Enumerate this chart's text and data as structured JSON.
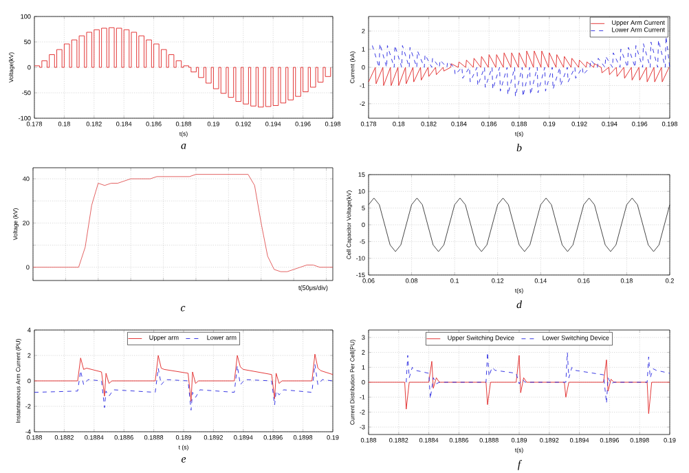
{
  "chart_data": [
    {
      "type": "step",
      "xlabel": "t(s)",
      "ylabel": "Voltage(kV)",
      "annotations": [
        "a"
      ],
      "grid": true,
      "color": "#e02020",
      "x": [
        0.178,
        0.17835,
        0.1785,
        0.17885,
        0.179,
        0.17935,
        0.1795,
        0.17985,
        0.18,
        0.18035,
        0.1805,
        0.18085,
        0.181,
        0.18135,
        0.1815,
        0.18185,
        0.182,
        0.18235,
        0.1825,
        0.18285,
        0.183,
        0.18335,
        0.1835,
        0.18385,
        0.184,
        0.18435,
        0.1845,
        0.18485,
        0.185,
        0.18535,
        0.1855,
        0.18585,
        0.186,
        0.18635,
        0.1865,
        0.18685,
        0.187,
        0.18735,
        0.1875,
        0.18785,
        0.188,
        0.18835,
        0.1885,
        0.18885,
        0.189,
        0.18935,
        0.1895,
        0.18985,
        0.19,
        0.19035,
        0.1905,
        0.19085,
        0.191,
        0.19135,
        0.1915,
        0.19185,
        0.192,
        0.19235,
        0.1925,
        0.19285,
        0.193,
        0.19335,
        0.1935,
        0.19385,
        0.194,
        0.19435,
        0.1945,
        0.19485,
        0.195,
        0.19535,
        0.1955,
        0.19585,
        0.196,
        0.19635,
        0.1965,
        0.19685,
        0.197,
        0.19735,
        0.1975,
        0.19785
      ],
      "values": [
        3,
        0,
        13,
        0,
        25,
        0,
        35,
        0,
        46,
        0,
        54,
        0,
        62,
        0,
        69,
        0,
        74,
        0,
        77,
        0,
        78,
        0,
        77,
        0,
        74,
        0,
        69,
        0,
        62,
        0,
        54,
        0,
        46,
        0,
        35,
        0,
        25,
        0,
        13,
        0,
        3,
        0,
        -9,
        0,
        -20,
        0,
        -31,
        0,
        -42,
        0,
        -51,
        0,
        -59,
        0,
        -67,
        0,
        -72,
        0,
        -76,
        0,
        -78,
        0,
        -77,
        0,
        -75,
        0,
        -70,
        0,
        -64,
        0,
        -57,
        0,
        -48,
        0,
        -39,
        0,
        -29,
        0,
        -18,
        0
      ],
      "xlim": [
        0.178,
        0.198
      ],
      "xticks": [
        0.178,
        0.18,
        0.182,
        0.184,
        0.186,
        0.188,
        0.19,
        0.192,
        0.194,
        0.196,
        0.198
      ],
      "ylim": [
        -100,
        100
      ],
      "yticks": [
        -100,
        -50,
        0,
        50,
        100
      ]
    },
    {
      "type": "line",
      "xlabel": "t(s)",
      "ylabel": "Current (kA)",
      "annotations": [
        "b"
      ],
      "grid": true,
      "legend": "top right",
      "series": [
        {
          "name": "Upper Arm Current",
          "color": "#e02020",
          "line_style": "solid",
          "x": [
            0.178,
            0.17845,
            0.1785,
            0.17895,
            0.179,
            0.17945,
            0.1795,
            0.17995,
            0.18,
            0.18045,
            0.1805,
            0.18095,
            0.181,
            0.18145,
            0.1815,
            0.18195,
            0.182,
            0.18245,
            0.1825,
            0.18295,
            0.183,
            0.18345,
            0.1835,
            0.18395,
            0.184,
            0.18445,
            0.1845,
            0.18495,
            0.185,
            0.18545,
            0.1855,
            0.18595,
            0.186,
            0.18645,
            0.1865,
            0.18695,
            0.187,
            0.18745,
            0.1875,
            0.18795,
            0.188,
            0.18845,
            0.1885,
            0.18895,
            0.189,
            0.18945,
            0.1895,
            0.18995,
            0.19,
            0.19045,
            0.1905,
            0.19095,
            0.191,
            0.19145,
            0.1915,
            0.19195,
            0.192,
            0.19245,
            0.1925,
            0.19295,
            0.193,
            0.19345,
            0.1935,
            0.19395,
            0.194,
            0.19445,
            0.1945,
            0.19495,
            0.195,
            0.19545,
            0.1955,
            0.19595,
            0.196,
            0.19645,
            0.1965,
            0.19695,
            0.197,
            0.19745,
            0.1975,
            0.19795
          ],
          "values": [
            -0.8,
            0,
            -0.9,
            0,
            -1,
            0,
            -1,
            0,
            -1,
            0,
            -0.9,
            0,
            -0.8,
            0,
            -0.7,
            0,
            -0.5,
            0,
            -0.4,
            0,
            -0.2,
            0,
            0.2,
            0,
            0.3,
            0,
            0.4,
            0,
            0.5,
            0,
            0.6,
            0,
            0.7,
            0,
            0.7,
            0,
            0.8,
            0,
            0.8,
            0,
            0.8,
            0,
            0.9,
            0,
            0.9,
            0,
            0.9,
            0,
            0.8,
            0,
            0.7,
            0,
            0.6,
            0,
            0.5,
            0,
            0.4,
            0,
            0.3,
            0,
            0.2,
            0,
            -0.3,
            0,
            -0.4,
            0,
            -0.5,
            0,
            -0.6,
            0,
            -0.7,
            0,
            -0.7,
            0,
            -0.8,
            0,
            -0.8,
            0,
            -0.8,
            0
          ]
        },
        {
          "name": "Lower Arm Current",
          "color": "#2020e0",
          "line_style": "dashed",
          "x": [
            0.17825,
            0.1787,
            0.17875,
            0.1792,
            0.17925,
            0.1797,
            0.17975,
            0.1802,
            0.18025,
            0.1807,
            0.18075,
            0.1812,
            0.18125,
            0.1817,
            0.18175,
            0.1822,
            0.18225,
            0.1827,
            0.18275,
            0.1832,
            0.18325,
            0.1837,
            0.18375,
            0.1842,
            0.18425,
            0.1847,
            0.18475,
            0.1852,
            0.18525,
            0.1857,
            0.18575,
            0.1862,
            0.18625,
            0.1867,
            0.18675,
            0.1872,
            0.18725,
            0.1877,
            0.18775,
            0.1882,
            0.18825,
            0.1887,
            0.18875,
            0.1892,
            0.18925,
            0.1897,
            0.18975,
            0.1902,
            0.19025,
            0.1907,
            0.19075,
            0.1912,
            0.19125,
            0.1917,
            0.19175,
            0.1922,
            0.19225,
            0.1927,
            0.19275,
            0.1932,
            0.19325,
            0.1937,
            0.19375,
            0.1942,
            0.19425,
            0.1947,
            0.19475,
            0.1952,
            0.19525,
            0.1957,
            0.19575,
            0.1962,
            0.19625,
            0.1967,
            0.19675,
            0.1972,
            0.19725,
            0.1977,
            0.19775,
            0.198
          ],
          "values": [
            1.2,
            0,
            1.3,
            0,
            1.2,
            0,
            1.2,
            0,
            1.2,
            0,
            1.1,
            0,
            0.9,
            0,
            0.7,
            0,
            0.5,
            0,
            0.4,
            0,
            0.3,
            0,
            -0.4,
            0,
            -0.6,
            0,
            -0.8,
            0,
            -1,
            0,
            -1.1,
            0,
            -1.2,
            0,
            -1.3,
            0,
            -1.5,
            0,
            -1.6,
            0,
            -1.6,
            0,
            -1.5,
            0,
            -1.4,
            0,
            -1.3,
            0,
            -1.2,
            0,
            -1,
            0,
            -0.8,
            0,
            -0.6,
            0,
            -0.4,
            0,
            0.4,
            0,
            0.5,
            0,
            0.6,
            0,
            0.8,
            0,
            1,
            0,
            1.1,
            0,
            1.2,
            0,
            1.3,
            0,
            1.4,
            0,
            1.5,
            0,
            1.7,
            0
          ]
        }
      ],
      "xlim": [
        0.178,
        0.198
      ],
      "xticks": [
        0.178,
        0.18,
        0.182,
        0.184,
        0.186,
        0.188,
        0.19,
        0.192,
        0.194,
        0.196,
        0.198
      ],
      "ylim": [
        -2.8,
        2.8
      ],
      "yticks": [
        -2,
        -1,
        0,
        1,
        2
      ]
    },
    {
      "type": "line",
      "xlabel": "t(50μs/div)",
      "ylabel": "Voltage (kV)",
      "annotations": [
        "c"
      ],
      "grid": true,
      "color": "#e05050",
      "categories": [
        null,
        null,
        null,
        null,
        null,
        null,
        null,
        null,
        null,
        null,
        null,
        null,
        null,
        null,
        null,
        null,
        null,
        null,
        null,
        null,
        null,
        null,
        null,
        null,
        null,
        null,
        null,
        null,
        null,
        null,
        null,
        null,
        null,
        null,
        null,
        null,
        null,
        null,
        null,
        null,
        null,
        null,
        null,
        null,
        null,
        null,
        null
      ],
      "values": [
        0,
        0,
        0,
        0,
        0,
        0,
        0,
        0,
        9,
        28,
        38,
        37,
        38,
        38,
        39,
        40,
        40,
        40,
        40,
        41,
        41,
        41,
        41,
        41,
        41,
        42,
        42,
        42,
        42,
        42,
        42,
        42,
        42,
        42,
        37,
        20,
        5,
        -1,
        -2,
        -2,
        -1,
        0,
        1,
        1,
        0,
        0,
        0
      ],
      "ylim": [
        -6,
        45
      ],
      "yticks": [
        0,
        {
          "value": 10,
          "label": null
        },
        20,
        {
          "value": 30,
          "label": null
        },
        40
      ]
    },
    {
      "type": "line",
      "xlabel": "t(s)",
      "ylabel": "Cell Capacitor Voltage(kV)",
      "annotations": [
        "d"
      ],
      "grid": true,
      "color": "#303030",
      "x": [
        0.06,
        0.0625,
        0.065,
        0.0675,
        0.07,
        0.0725,
        0.075,
        0.0775,
        0.08,
        0.0825,
        0.085,
        0.0875,
        0.09,
        0.0925,
        0.095,
        0.0975,
        0.1,
        0.1025,
        0.105,
        0.1075,
        0.11,
        0.1125,
        0.115,
        0.1175,
        0.12,
        0.1225,
        0.125,
        0.1275,
        0.13,
        0.1325,
        0.135,
        0.1375,
        0.14,
        0.1425,
        0.145,
        0.1475,
        0.15,
        0.1525,
        0.155,
        0.1575,
        0.16,
        0.1625,
        0.165,
        0.1675,
        0.17,
        0.1725,
        0.175,
        0.1775,
        0.18,
        0.1825,
        0.185,
        0.1875,
        0.19,
        0.1925,
        0.195,
        0.1975,
        0.2
      ],
      "values": [
        6,
        8,
        6,
        0,
        -6,
        -8,
        -6,
        0,
        6,
        8,
        6,
        0,
        -6,
        -8,
        -6,
        0,
        6,
        8,
        6,
        0,
        -6,
        -8,
        -6,
        0,
        6,
        8,
        6,
        0,
        -6,
        -8,
        -6,
        0,
        6,
        8,
        6,
        0,
        -6,
        -8,
        -6,
        0,
        6,
        8,
        6,
        0,
        -6,
        -8,
        -6,
        0,
        6,
        8,
        6,
        0,
        -6,
        -8,
        -6,
        0,
        6
      ],
      "xlim": [
        0.06,
        0.2
      ],
      "xticks": [
        0.06,
        0.08,
        0.1,
        0.12,
        0.14,
        0.16,
        0.18,
        0.2
      ],
      "ylim": [
        -15,
        15
      ],
      "yticks": [
        -15,
        -10,
        -5,
        0,
        5,
        10,
        15
      ]
    },
    {
      "type": "line",
      "xlabel": "t (s)",
      "ylabel": "Instantaneous Arm Current (PU)",
      "annotations": [
        "e"
      ],
      "grid": true,
      "legend": "top",
      "series": [
        {
          "name": "Upper arm",
          "color": "#e02020",
          "line_style": "solid",
          "x": [
            0.188,
            0.18829,
            0.18831,
            0.18833,
            0.18835,
            0.18845,
            0.18847,
            0.18848,
            0.1885,
            0.18852,
            0.18881,
            0.18883,
            0.18885,
            0.18887,
            0.18903,
            0.18905,
            0.18906,
            0.18908,
            0.1891,
            0.18934,
            0.18936,
            0.18938,
            0.1894,
            0.18959,
            0.18961,
            0.18962,
            0.18964,
            0.18966,
            0.18986,
            0.18988,
            0.1899,
            0.18992,
            0.19
          ],
          "values": [
            0,
            0,
            1.8,
            0.9,
            1,
            0.7,
            -1.2,
            0.6,
            -0.2,
            0,
            0,
            2,
            1,
            0.9,
            0.6,
            -1.6,
            0.7,
            -0.2,
            0,
            0,
            2,
            1.1,
            0.9,
            0.5,
            -1.4,
            0.6,
            -0.2,
            0,
            0,
            2.1,
            1,
            0.8,
            0.5
          ]
        },
        {
          "name": "Lower arm",
          "color": "#2020e0",
          "line_style": "dashed",
          "x": [
            0.188,
            0.18829,
            0.18831,
            0.18833,
            0.18836,
            0.18845,
            0.18847,
            0.18848,
            0.1885,
            0.18853,
            0.18881,
            0.18883,
            0.18885,
            0.18888,
            0.18903,
            0.18905,
            0.18906,
            0.18908,
            0.18911,
            0.18934,
            0.18936,
            0.18938,
            0.18941,
            0.18959,
            0.18961,
            0.18962,
            0.18964,
            0.18967,
            0.18986,
            0.18988,
            0.1899,
            0.18993,
            0.19
          ],
          "values": [
            -0.9,
            -0.8,
            0.8,
            -0.3,
            0.1,
            0,
            -2.1,
            -0.8,
            -1.2,
            -0.7,
            -0.9,
            1,
            -0.3,
            0.1,
            0,
            -2.3,
            -0.9,
            -1.3,
            -0.7,
            -0.9,
            1.2,
            -0.3,
            0.1,
            0,
            -1.9,
            -0.8,
            -1.1,
            -0.7,
            -0.9,
            1.3,
            -0.3,
            0.1,
            0
          ]
        }
      ],
      "xlim": [
        0.188,
        0.19
      ],
      "xticks": [
        0.188,
        0.1882,
        0.1884,
        0.1886,
        0.1888,
        0.189,
        0.1892,
        0.1894,
        0.1896,
        0.1898,
        0.19
      ],
      "ylim": [
        -4,
        4
      ],
      "yticks": [
        -4,
        -2,
        0,
        2,
        4
      ]
    },
    {
      "type": "line",
      "xlabel": "t(s)",
      "ylabel": "Current Distribution Per Cell(PU)",
      "annotations": [
        "f"
      ],
      "grid": true,
      "legend": "top",
      "series": [
        {
          "name": "Upper Switching Device",
          "color": "#e02020",
          "line_style": "solid",
          "x": [
            0.188,
            0.18824,
            0.18825,
            0.18827,
            0.1884,
            0.18842,
            0.18843,
            0.18845,
            0.18847,
            0.18878,
            0.18879,
            0.18881,
            0.18898,
            0.189,
            0.18901,
            0.18903,
            0.18905,
            0.1893,
            0.18931,
            0.18933,
            0.18956,
            0.18958,
            0.18959,
            0.18961,
            0.18963,
            0.18985,
            0.18986,
            0.18988,
            0.19
          ],
          "values": [
            0,
            0,
            -1.8,
            0,
            0,
            1.4,
            -0.4,
            0.3,
            0,
            0,
            -1.5,
            0,
            0,
            1.8,
            -0.7,
            0.3,
            0,
            0,
            -1,
            0,
            0,
            1.5,
            -0.6,
            0.2,
            0,
            0,
            -2.1,
            0,
            0
          ]
        },
        {
          "name": "Lower Switching Device",
          "color": "#2020e0",
          "line_style": "dashed",
          "x": [
            0.18825,
            0.18826,
            0.18827,
            0.18829,
            0.18831,
            0.1884,
            0.18841,
            0.18843,
            0.18845,
            0.18847,
            0.18878,
            0.18879,
            0.1888,
            0.18882,
            0.18884,
            0.18898,
            0.189,
            0.18902,
            0.18904,
            0.18931,
            0.18932,
            0.18933,
            0.18935,
            0.18937,
            0.18956,
            0.18958,
            0.18959,
            0.18961,
            0.18963,
            0.18985,
            0.18986,
            0.18987,
            0.18989,
            0.18991,
            0.19
          ],
          "values": [
            0,
            1.8,
            0.3,
            1,
            0.8,
            0.6,
            -1.1,
            0.3,
            -0.1,
            0,
            0,
            2,
            0.4,
            1,
            0.8,
            0.6,
            -0.1,
            0.2,
            0,
            0,
            2,
            0.3,
            1,
            0.8,
            0.5,
            -1.4,
            0.3,
            -0.1,
            0,
            0,
            1.7,
            0.3,
            0.9,
            0.8,
            0.6
          ]
        }
      ],
      "xlim": [
        0.188,
        0.19
      ],
      "xticks": [
        0.188,
        0.1882,
        0.1884,
        0.1886,
        0.1888,
        0.189,
        0.1892,
        0.1894,
        0.1896,
        0.1898,
        0.19
      ],
      "ylim": [
        -3.5,
        3.5
      ],
      "yticks": [
        -3,
        -2,
        -1,
        0,
        1,
        2,
        3
      ]
    }
  ]
}
